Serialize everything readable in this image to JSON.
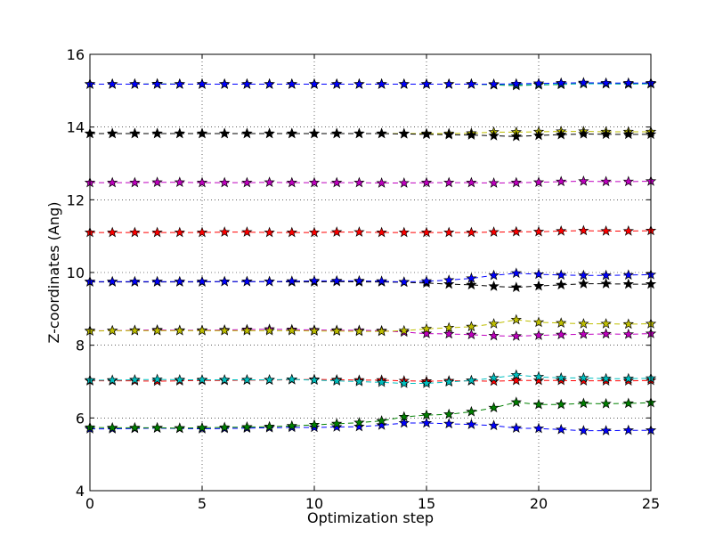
{
  "chart_data": {
    "type": "line",
    "title": "",
    "xlabel": "Optimization step",
    "ylabel": "Z-coordinates (Ang)",
    "xlim": [
      0,
      25
    ],
    "ylim": [
      4,
      16
    ],
    "xticks": [
      0,
      5,
      10,
      15,
      20,
      25
    ],
    "yticks": [
      4,
      6,
      8,
      10,
      12,
      14,
      16
    ],
    "grid": true,
    "grid_style": "dotted",
    "line_style": "dashed",
    "marker": "star",
    "x": [
      0,
      1,
      2,
      3,
      4,
      5,
      6,
      7,
      8,
      9,
      10,
      11,
      12,
      13,
      14,
      15,
      16,
      17,
      18,
      19,
      20,
      21,
      22,
      23,
      24,
      25
    ],
    "series": [
      {
        "color": "#0000ff",
        "values": [
          5.7,
          5.7,
          5.71,
          5.72,
          5.71,
          5.7,
          5.71,
          5.72,
          5.73,
          5.74,
          5.74,
          5.75,
          5.76,
          5.8,
          5.86,
          5.86,
          5.84,
          5.82,
          5.79,
          5.72,
          5.71,
          5.68,
          5.65,
          5.65,
          5.66,
          5.66
        ]
      },
      {
        "color": "#008000",
        "values": [
          5.74,
          5.73,
          5.73,
          5.73,
          5.72,
          5.73,
          5.74,
          5.75,
          5.76,
          5.78,
          5.81,
          5.84,
          5.87,
          5.92,
          6.03,
          6.08,
          6.1,
          6.17,
          6.28,
          6.43,
          6.37,
          6.37,
          6.4,
          6.39,
          6.4,
          6.42
        ]
      },
      {
        "color": "#ff0000",
        "values": [
          7.02,
          7.02,
          7.02,
          7.01,
          7.02,
          7.03,
          7.03,
          7.04,
          7.04,
          7.05,
          7.06,
          7.05,
          7.04,
          7.04,
          7.02,
          7.01,
          7.02,
          7.02,
          7.01,
          7.03,
          7.03,
          7.03,
          7.02,
          7.02,
          7.02,
          7.03
        ]
      },
      {
        "color": "#00bfbf",
        "values": [
          7.04,
          7.04,
          7.05,
          7.06,
          7.05,
          7.05,
          7.05,
          7.05,
          7.05,
          7.06,
          7.04,
          7.02,
          7.0,
          6.98,
          6.95,
          6.95,
          6.99,
          7.03,
          7.1,
          7.18,
          7.13,
          7.1,
          7.1,
          7.08,
          7.08,
          7.09
        ]
      },
      {
        "color": "#bf00bf",
        "values": [
          8.4,
          8.4,
          8.41,
          8.42,
          8.41,
          8.41,
          8.42,
          8.43,
          8.44,
          8.43,
          8.42,
          8.41,
          8.41,
          8.4,
          8.36,
          8.32,
          8.31,
          8.29,
          8.26,
          8.25,
          8.27,
          8.29,
          8.3,
          8.31,
          8.3,
          8.32
        ]
      },
      {
        "color": "#bfbf00",
        "values": [
          8.39,
          8.4,
          8.4,
          8.4,
          8.4,
          8.4,
          8.4,
          8.4,
          8.4,
          8.4,
          8.39,
          8.39,
          8.38,
          8.38,
          8.4,
          8.45,
          8.48,
          8.51,
          8.59,
          8.7,
          8.63,
          8.61,
          8.59,
          8.59,
          8.58,
          8.59
        ]
      },
      {
        "color": "#000000",
        "values": [
          9.74,
          9.74,
          9.74,
          9.74,
          9.74,
          9.74,
          9.75,
          9.75,
          9.75,
          9.74,
          9.74,
          9.75,
          9.74,
          9.74,
          9.73,
          9.71,
          9.68,
          9.66,
          9.62,
          9.59,
          9.63,
          9.66,
          9.69,
          9.69,
          9.68,
          9.68
        ]
      },
      {
        "color": "#0000ff",
        "values": [
          9.75,
          9.75,
          9.75,
          9.75,
          9.75,
          9.75,
          9.75,
          9.75,
          9.75,
          9.76,
          9.77,
          9.77,
          9.77,
          9.76,
          9.74,
          9.76,
          9.79,
          9.84,
          9.92,
          9.98,
          9.95,
          9.93,
          9.92,
          9.92,
          9.93,
          9.94
        ]
      },
      {
        "color": "#ff0000",
        "values": [
          11.1,
          11.1,
          11.1,
          11.1,
          11.1,
          11.1,
          11.11,
          11.11,
          11.1,
          11.1,
          11.1,
          11.11,
          11.11,
          11.1,
          11.1,
          11.1,
          11.1,
          11.1,
          11.11,
          11.12,
          11.12,
          11.14,
          11.15,
          11.14,
          11.14,
          11.15
        ]
      },
      {
        "color": "#bf00bf",
        "values": [
          12.47,
          12.47,
          12.47,
          12.48,
          12.48,
          12.47,
          12.47,
          12.47,
          12.48,
          12.47,
          12.47,
          12.47,
          12.47,
          12.46,
          12.46,
          12.47,
          12.47,
          12.47,
          12.46,
          12.47,
          12.48,
          12.5,
          12.51,
          12.5,
          12.5,
          12.51
        ]
      },
      {
        "color": "#bfbf00",
        "values": [
          13.82,
          13.82,
          13.82,
          13.82,
          13.82,
          13.82,
          13.82,
          13.82,
          13.82,
          13.82,
          13.82,
          13.82,
          13.82,
          13.82,
          13.82,
          13.82,
          13.82,
          13.83,
          13.86,
          13.86,
          13.87,
          13.88,
          13.88,
          13.87,
          13.87,
          13.87
        ]
      },
      {
        "color": "#000000",
        "values": [
          13.82,
          13.82,
          13.82,
          13.82,
          13.82,
          13.82,
          13.82,
          13.82,
          13.82,
          13.82,
          13.82,
          13.82,
          13.82,
          13.82,
          13.81,
          13.8,
          13.79,
          13.78,
          13.76,
          13.74,
          13.77,
          13.79,
          13.81,
          13.8,
          13.8,
          13.8
        ]
      },
      {
        "color": "#008000",
        "values": [
          15.18,
          15.18,
          15.18,
          15.19,
          15.18,
          15.18,
          15.18,
          15.18,
          15.18,
          15.18,
          15.18,
          15.18,
          15.18,
          15.18,
          15.18,
          15.18,
          15.18,
          15.18,
          15.16,
          15.14,
          15.16,
          15.17,
          15.2,
          15.19,
          15.18,
          15.19
        ]
      },
      {
        "color": "#00bfbf",
        "values": [
          15.18,
          15.18,
          15.18,
          15.18,
          15.18,
          15.18,
          15.18,
          15.18,
          15.18,
          15.18,
          15.18,
          15.18,
          15.18,
          15.18,
          15.18,
          15.18,
          15.18,
          15.18,
          15.17,
          15.16,
          15.17,
          15.18,
          15.19,
          15.19,
          15.19,
          15.19
        ]
      },
      {
        "color": "#0000ff",
        "values": [
          15.18,
          15.18,
          15.18,
          15.18,
          15.18,
          15.18,
          15.18,
          15.18,
          15.18,
          15.18,
          15.18,
          15.18,
          15.18,
          15.18,
          15.18,
          15.18,
          15.18,
          15.18,
          15.18,
          15.19,
          15.2,
          15.21,
          15.22,
          15.21,
          15.21,
          15.21
        ]
      }
    ]
  }
}
